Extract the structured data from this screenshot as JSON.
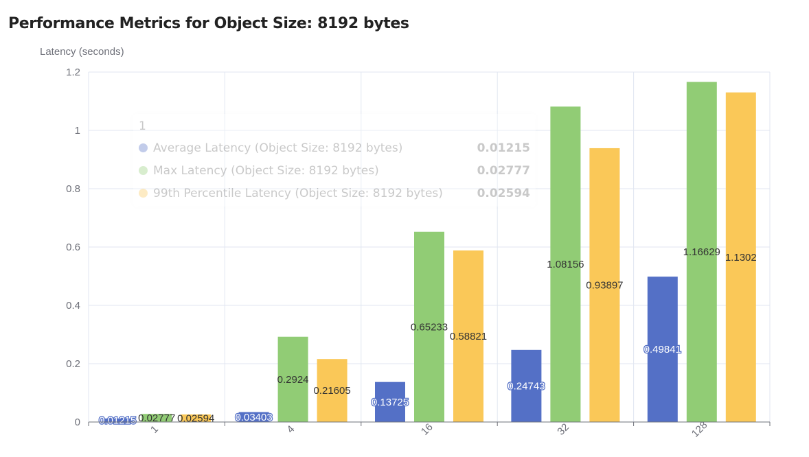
{
  "chart_data": {
    "type": "bar",
    "title": "Performance Metrics for Object Size: 8192 bytes",
    "ylabel": "Latency (seconds)",
    "xlabel": "",
    "categories": [
      "1",
      "4",
      "16",
      "32",
      "128"
    ],
    "ylim": [
      0,
      1.2
    ],
    "yticks": [
      "0",
      "0.2",
      "0.4",
      "0.6",
      "0.8",
      "1",
      "1.2"
    ],
    "ytick_values": [
      0,
      0.2,
      0.4,
      0.6,
      0.8,
      1,
      1.2
    ],
    "grid": true,
    "series": [
      {
        "name": "Average Latency (Object Size: 8192 bytes)",
        "color": "#5470c6",
        "values": [
          0.01215,
          0.03403,
          0.13725,
          0.24743,
          0.49841
        ],
        "labels": [
          "0.01215",
          "0.03403",
          "0.13725",
          "0.24743",
          "0.49841"
        ]
      },
      {
        "name": "Max Latency (Object Size: 8192 bytes)",
        "color": "#91cc75",
        "values": [
          0.02777,
          0.2924,
          0.65233,
          1.08156,
          1.16629
        ],
        "labels": [
          "0.02777",
          "0.2924",
          "0.65233",
          "1.08156",
          "1.16629"
        ]
      },
      {
        "name": "99th Percentile Latency (Object Size: 8192 bytes)",
        "color": "#fac858",
        "values": [
          0.02594,
          0.21605,
          0.58821,
          0.93897,
          1.1302
        ],
        "labels": [
          "0.02594",
          "0.21605",
          "0.58821",
          "0.93897",
          "1.1302"
        ]
      }
    ]
  },
  "tooltip": {
    "header": "1",
    "rows": [
      {
        "name": "Average Latency (Object Size: 8192 bytes)",
        "value": "0.01215",
        "color": "#5470c6"
      },
      {
        "name": "Max Latency (Object Size: 8192 bytes)",
        "value": "0.02777",
        "color": "#91cc75"
      },
      {
        "name": "99th Percentile Latency (Object Size: 8192 bytes)",
        "value": "0.02594",
        "color": "#fac858"
      }
    ]
  }
}
